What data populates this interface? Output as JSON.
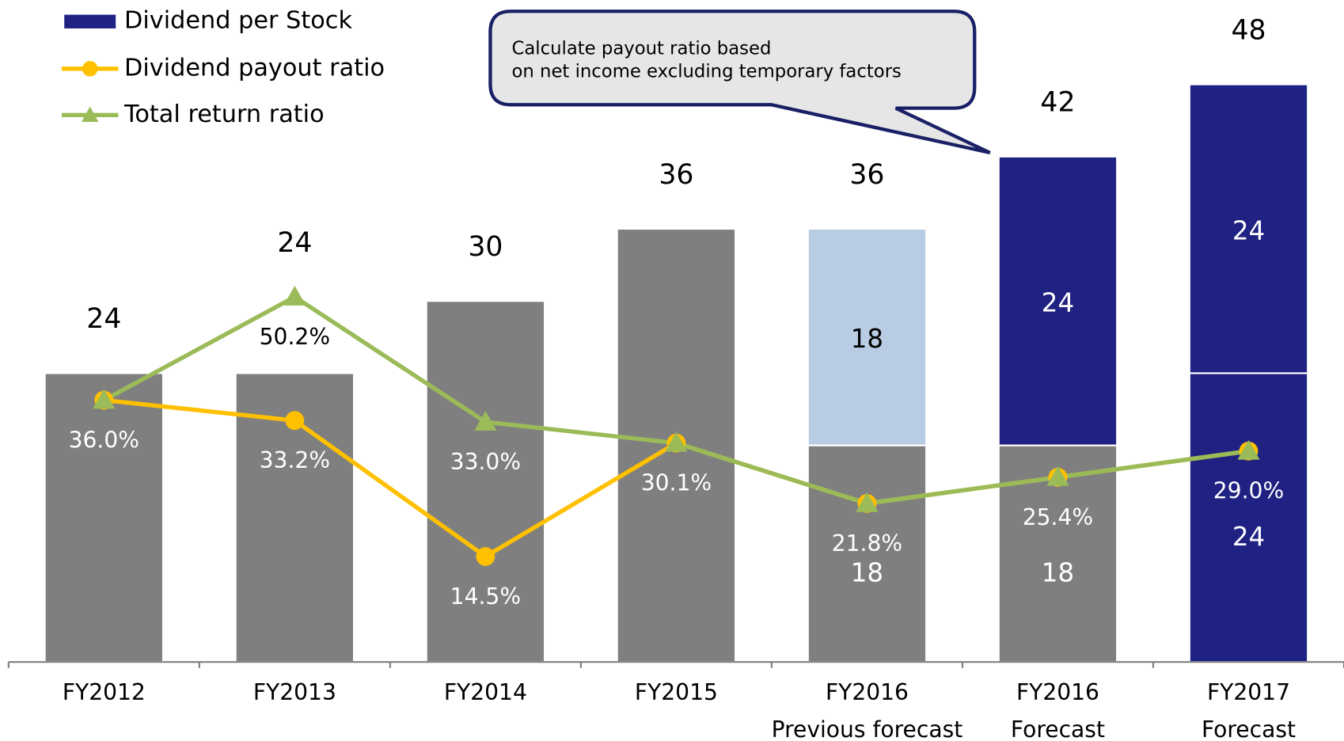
{
  "chart_data": {
    "type": "bar",
    "categories": [
      "FY2012",
      "FY2013",
      "FY2014",
      "FY2015",
      "FY2016",
      "FY2016",
      "FY2017"
    ],
    "category_sublabels": [
      null,
      null,
      null,
      null,
      "Previous forecast",
      "Forecast",
      "Forecast"
    ],
    "ylim": [
      0,
      55
    ],
    "y2lim": [
      0,
      91
    ],
    "totals": [
      24,
      24,
      30,
      36,
      36,
      42,
      48
    ],
    "bar_series": [
      {
        "name": "Dividend per Stock",
        "color": "#1f2183",
        "values": [
          24,
          24,
          30,
          36,
          18,
          18,
          24
        ],
        "colors": [
          "#7f7f7f",
          "#7f7f7f",
          "#7f7f7f",
          "#7f7f7f",
          "#7f7f7f",
          "#7f7f7f",
          "#1f2183"
        ],
        "value_labels": [
          null,
          null,
          null,
          null,
          "18",
          "18",
          "24"
        ]
      },
      {
        "values": [
          null,
          null,
          null,
          null,
          18,
          24,
          24
        ],
        "colors": [
          null,
          null,
          null,
          null,
          "#b8cce4",
          "#1f2183",
          "#1f2183"
        ],
        "value_labels": [
          null,
          null,
          null,
          null,
          "18",
          "24",
          "24"
        ]
      }
    ],
    "series": [
      {
        "name": "Dividend payout ratio",
        "color": "#ffc000",
        "marker": "circle",
        "axis": "y2",
        "values": [
          36.0,
          33.2,
          14.5,
          30.1,
          21.8,
          25.4,
          29.0
        ],
        "value_labels": [
          "36.0%",
          "33.2%",
          "14.5%",
          "30.1%",
          "21.8%",
          "25.4%",
          "29.0%"
        ]
      },
      {
        "name": "Total return ratio",
        "color": "#9bbb59",
        "marker": "triangle",
        "axis": "y2",
        "values": [
          36.0,
          50.2,
          33.0,
          30.1,
          21.8,
          25.4,
          29.0
        ],
        "value_labels": [
          null,
          "50.2%",
          "33.0%",
          null,
          null,
          null,
          null
        ]
      }
    ],
    "annotation": [
      "Calculate payout ratio based",
      "on net income excluding temporary factors"
    ]
  }
}
